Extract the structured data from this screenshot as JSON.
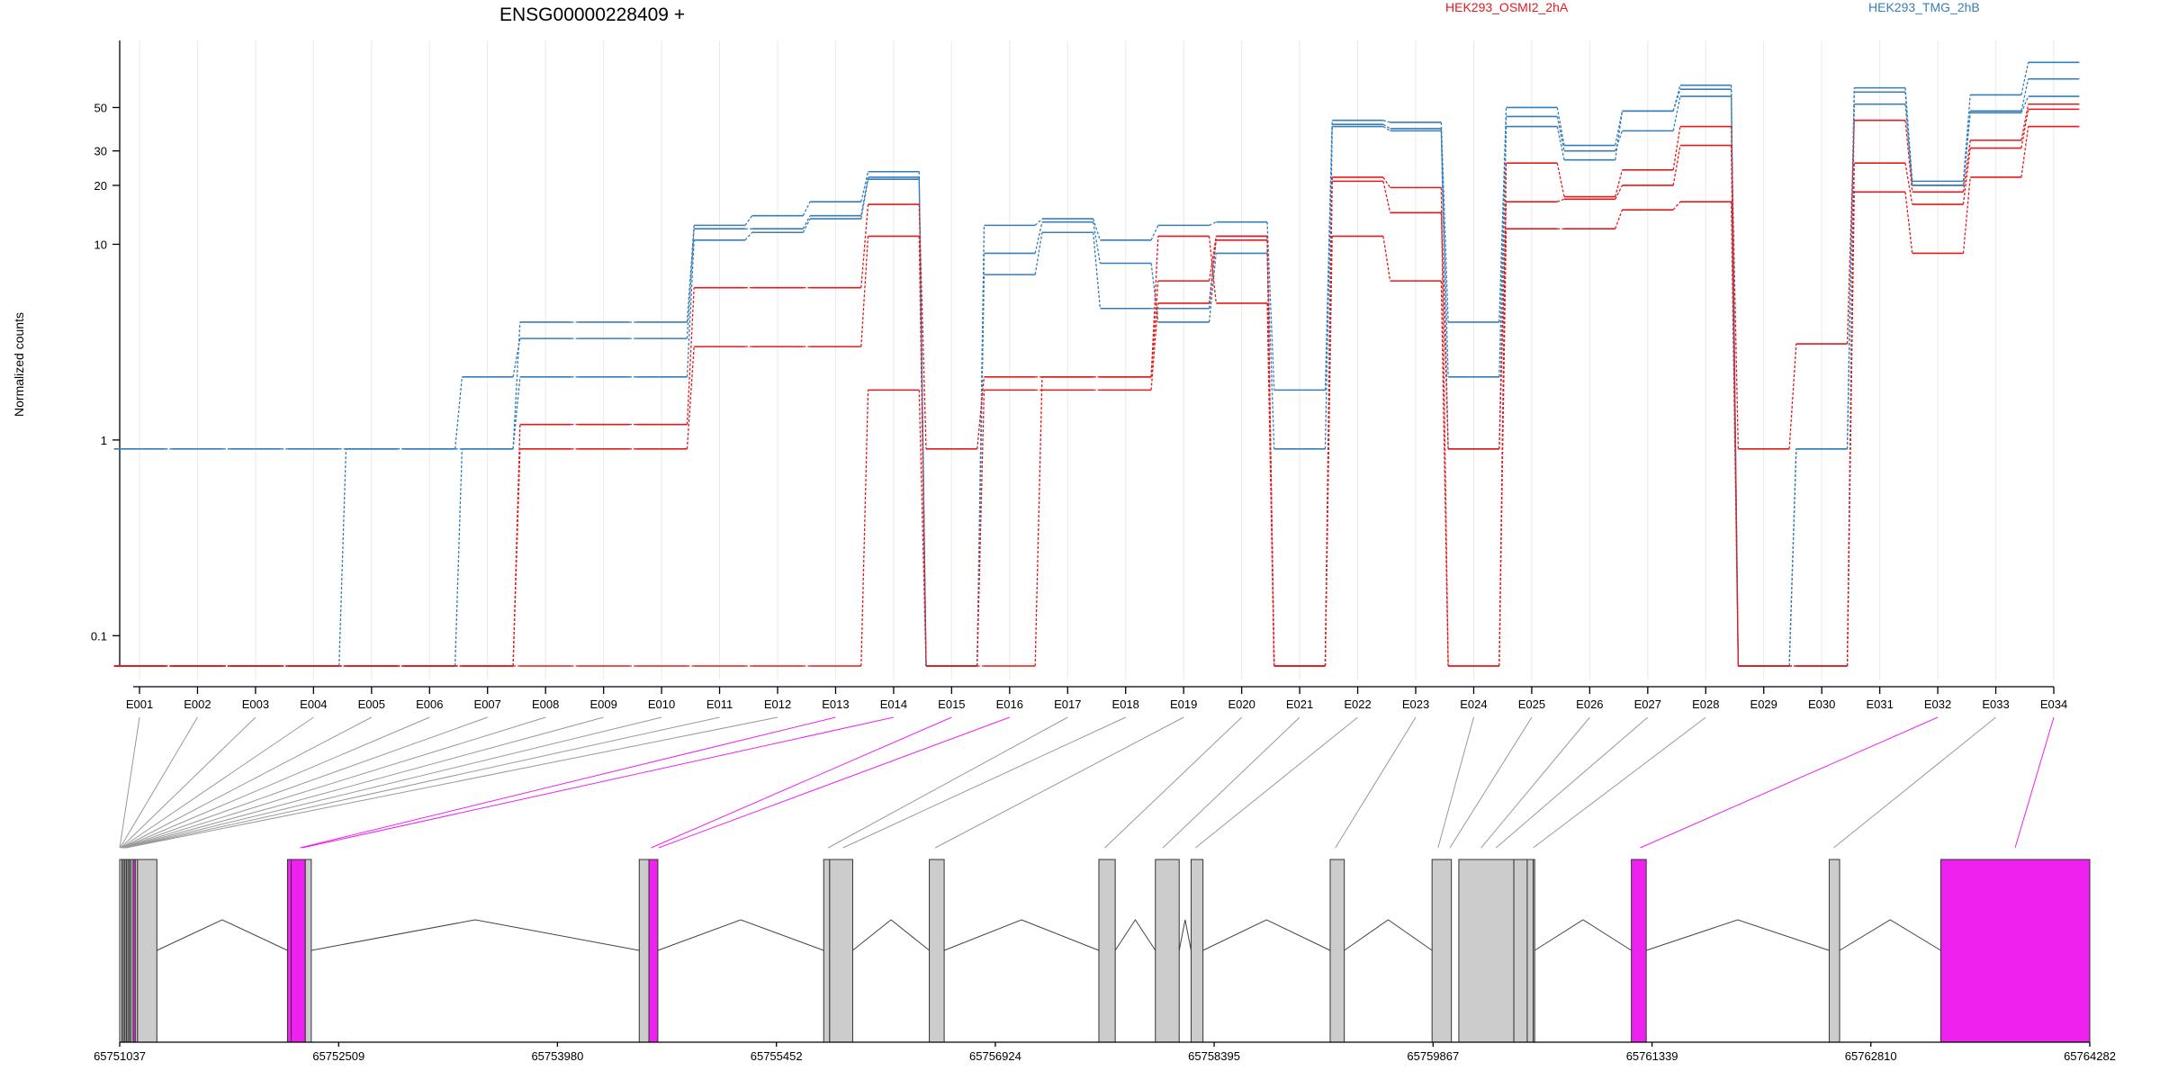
{
  "chart_data": {
    "type": "line",
    "title": "ENSG00000228409 +",
    "ylabel": "Normalized counts",
    "xlabel": "",
    "y_scale": "log",
    "ylim": [
      0.07,
      110
    ],
    "y_ticks": [
      {
        "value": 0.1,
        "label": "0.1"
      },
      {
        "value": 1,
        "label": "1"
      },
      {
        "value": 10,
        "label": "10"
      },
      {
        "value": 20,
        "label": "20"
      },
      {
        "value": 30,
        "label": "30"
      },
      {
        "value": 50,
        "label": "50"
      }
    ],
    "categories": [
      "E001",
      "E002",
      "E003",
      "E004",
      "E005",
      "E006",
      "E007",
      "E008",
      "E009",
      "E010",
      "E011",
      "E012",
      "E013",
      "E014",
      "E015",
      "E016",
      "E017",
      "E018",
      "E019",
      "E020",
      "E021",
      "E022",
      "E023",
      "E024",
      "E025",
      "E026",
      "E027",
      "E028",
      "E029",
      "E030",
      "E031",
      "E032",
      "E033",
      "E034"
    ],
    "legend": [
      {
        "label": "HEK293_OSMI2_2hA",
        "color": "#e41a1c"
      },
      {
        "label": "HEK293_TMG_2hB",
        "color": "#377eb8"
      }
    ],
    "legend_position": "top-right",
    "grid": "vertical",
    "series": [
      {
        "group": "HEK293_TMG_2hB",
        "color": "#377eb8",
        "values": [
          0.9,
          0.9,
          0.9,
          0.9,
          0.9,
          0.9,
          0.9,
          4,
          4,
          4,
          12.5,
          14,
          16.5,
          23.5,
          0.07,
          12.5,
          13.5,
          10.5,
          12.5,
          13,
          1.8,
          43,
          42,
          4,
          50,
          32,
          48,
          65,
          0.07,
          0.9,
          63,
          21,
          58,
          85
        ]
      },
      {
        "group": "HEK293_TMG_2hB",
        "color": "#377eb8",
        "values": [
          0.07,
          0.07,
          0.07,
          0.07,
          0.9,
          0.9,
          2.1,
          3.3,
          3.3,
          3.3,
          12,
          12,
          14,
          22,
          0.07,
          9,
          13,
          8,
          4,
          9,
          0.9,
          41,
          39,
          2.1,
          45,
          30,
          38,
          57,
          0.07,
          0.9,
          60,
          20,
          48,
          70
        ]
      },
      {
        "group": "HEK293_TMG_2hB",
        "color": "#377eb8",
        "values": [
          0.07,
          0.07,
          0.07,
          0.07,
          0.07,
          0.07,
          0.9,
          2.1,
          2.1,
          2.1,
          10.5,
          11.5,
          13.5,
          21.5,
          0.07,
          7,
          11.5,
          4.7,
          4.7,
          11,
          0.07,
          40,
          38,
          0.9,
          40,
          27,
          48,
          62,
          0.07,
          0.07,
          52,
          20,
          47,
          57
        ]
      },
      {
        "group": "HEK293_OSMI2_2hA",
        "color": "#e41a1c",
        "values": [
          0.07,
          0.07,
          0.07,
          0.07,
          0.07,
          0.07,
          0.07,
          1.2,
          1.2,
          1.2,
          6,
          6,
          6,
          16,
          0.9,
          2.1,
          2.1,
          2.1,
          6.5,
          11,
          0.07,
          22,
          19.5,
          0.07,
          26,
          17.5,
          24,
          40,
          0.9,
          3.1,
          43,
          18.5,
          34,
          52
        ]
      },
      {
        "group": "HEK293_OSMI2_2hA",
        "color": "#e41a1c",
        "values": [
          0.07,
          0.07,
          0.07,
          0.07,
          0.07,
          0.07,
          0.07,
          0.9,
          0.9,
          0.9,
          3,
          3,
          3,
          11,
          0.07,
          1.8,
          1.8,
          1.8,
          5,
          10.5,
          0.07,
          21,
          14.5,
          0.9,
          16.5,
          17,
          20,
          32,
          0.07,
          0.07,
          26,
          16,
          31,
          49
        ]
      },
      {
        "group": "HEK293_OSMI2_2hA",
        "color": "#e41a1c",
        "values": [
          0.07,
          0.07,
          0.07,
          0.07,
          0.07,
          0.07,
          0.07,
          0.07,
          0.07,
          0.07,
          0.07,
          0.07,
          0.07,
          1.8,
          0.07,
          0.07,
          2.1,
          2.1,
          11,
          5,
          0.07,
          11,
          6.5,
          0.07,
          12,
          12,
          15,
          16.5,
          0.07,
          0.07,
          18.5,
          9,
          22,
          40
        ]
      }
    ],
    "gene_model": {
      "coordinate_range": [
        65751037,
        65764282
      ],
      "coordinate_ticks": [
        "65751037",
        "65752509",
        "65753980",
        "65755452",
        "65756924",
        "65758395",
        "65759867",
        "65761339",
        "65762810",
        "65764282"
      ],
      "exon_fill_color": "#cccccc",
      "highlight_color": "#ee22ee",
      "exons": [
        {
          "bin": "E001",
          "start": 65751037,
          "end": 65751052,
          "highlight": false
        },
        {
          "bin": "E002",
          "start": 65751052,
          "end": 65751062,
          "highlight": false
        },
        {
          "bin": "E003",
          "start": 65751062,
          "end": 65751072,
          "highlight": false
        },
        {
          "bin": "E004",
          "start": 65751072,
          "end": 65751082,
          "highlight": false
        },
        {
          "bin": "E005",
          "start": 65751082,
          "end": 65751092,
          "highlight": false
        },
        {
          "bin": "E006",
          "start": 65751092,
          "end": 65751102,
          "highlight": false
        },
        {
          "bin": "E007",
          "start": 65751102,
          "end": 65751112,
          "highlight": false
        },
        {
          "bin": "E008",
          "start": 65751112,
          "end": 65751127,
          "highlight": false
        },
        {
          "bin": "E009",
          "start": 65751127,
          "end": 65751142,
          "highlight": true
        },
        {
          "bin": "E010",
          "start": 65751142,
          "end": 65751157,
          "highlight": false
        },
        {
          "bin": "E011",
          "start": 65751157,
          "end": 65751287,
          "highlight": false
        },
        {
          "bin": "E012",
          "start": 65752165,
          "end": 65752190,
          "highlight": true
        },
        {
          "bin": "E013",
          "start": 65752190,
          "end": 65752285,
          "highlight": true
        },
        {
          "bin": "E014",
          "start": 65752285,
          "end": 65752325,
          "highlight": false
        },
        {
          "bin": "E015",
          "start": 65754530,
          "end": 65754595,
          "highlight": false
        },
        {
          "bin": "E016",
          "start": 65754595,
          "end": 65754655,
          "highlight": true
        },
        {
          "bin": "E017",
          "start": 65755770,
          "end": 65755810,
          "highlight": false
        },
        {
          "bin": "E018",
          "start": 65755810,
          "end": 65755965,
          "highlight": false
        },
        {
          "bin": "E019",
          "start": 65756480,
          "end": 65756580,
          "highlight": false
        },
        {
          "bin": "E020",
          "start": 65757620,
          "end": 65757730,
          "highlight": false
        },
        {
          "bin": "E021",
          "start": 65758000,
          "end": 65758160,
          "highlight": false
        },
        {
          "bin": "E022",
          "start": 65758240,
          "end": 65758320,
          "highlight": false
        },
        {
          "bin": "E023",
          "start": 65759175,
          "end": 65759270,
          "highlight": false
        },
        {
          "bin": "E024",
          "start": 65759860,
          "end": 65759990,
          "highlight": false
        },
        {
          "bin": "E025",
          "start": 65760040,
          "end": 65760410,
          "highlight": false
        },
        {
          "bin": "E026",
          "start": 65760410,
          "end": 65760500,
          "highlight": false
        },
        {
          "bin": "E027",
          "start": 65760500,
          "end": 65760540,
          "highlight": false
        },
        {
          "bin": "E028",
          "start": 65760540,
          "end": 65760550,
          "highlight": false
        },
        {
          "bin": "E029",
          "start": 65761200,
          "end": 65761300,
          "highlight": true
        },
        {
          "bin": "E030",
          "start": 65762530,
          "end": 65762600,
          "highlight": false
        },
        {
          "bin": "E031",
          "start": 65763280,
          "end": 65764282,
          "highlight": true
        }
      ],
      "bin_links": [
        {
          "bin": "E001",
          "coord": 65751037,
          "highlight": false
        },
        {
          "bin": "E002",
          "coord": 65751040,
          "highlight": false
        },
        {
          "bin": "E003",
          "coord": 65751044,
          "highlight": false
        },
        {
          "bin": "E004",
          "coord": 65751048,
          "highlight": false
        },
        {
          "bin": "E005",
          "coord": 65751052,
          "highlight": false
        },
        {
          "bin": "E006",
          "coord": 65751056,
          "highlight": false
        },
        {
          "bin": "E007",
          "coord": 65751060,
          "highlight": false
        },
        {
          "bin": "E008",
          "coord": 65751064,
          "highlight": false
        },
        {
          "bin": "E009",
          "coord": 65751068,
          "highlight": false
        },
        {
          "bin": "E010",
          "coord": 65751072,
          "highlight": false
        },
        {
          "bin": "E011",
          "coord": 65751076,
          "highlight": false
        },
        {
          "bin": "E012",
          "coord": 65751080,
          "highlight": false
        },
        {
          "bin": "E013",
          "coord": 65752250,
          "highlight": true
        },
        {
          "bin": "E014",
          "coord": 65752265,
          "highlight": true
        },
        {
          "bin": "E015",
          "coord": 65754610,
          "highlight": true
        },
        {
          "bin": "E016",
          "coord": 65754660,
          "highlight": true
        },
        {
          "bin": "E017",
          "coord": 65755800,
          "highlight": false
        },
        {
          "bin": "E018",
          "coord": 65755900,
          "highlight": false
        },
        {
          "bin": "E019",
          "coord": 65756520,
          "highlight": false
        },
        {
          "bin": "E020",
          "coord": 65757660,
          "highlight": false
        },
        {
          "bin": "E021",
          "coord": 65758050,
          "highlight": false
        },
        {
          "bin": "E022",
          "coord": 65758270,
          "highlight": false
        },
        {
          "bin": "E023",
          "coord": 65759210,
          "highlight": false
        },
        {
          "bin": "E024",
          "coord": 65759900,
          "highlight": false
        },
        {
          "bin": "E025",
          "coord": 65759980,
          "highlight": false
        },
        {
          "bin": "E026",
          "coord": 65760190,
          "highlight": false
        },
        {
          "bin": "E027",
          "coord": 65760290,
          "highlight": false
        },
        {
          "bin": "E028",
          "coord": 65760540,
          "highlight": false
        },
        {
          "bin": "E032",
          "coord": 65761260,
          "highlight": true
        },
        {
          "bin": "E033",
          "coord": 65762560,
          "highlight": false
        },
        {
          "bin": "E034",
          "coord": 65763780,
          "highlight": true
        }
      ],
      "introns": [
        [
          65751287,
          65752165
        ],
        [
          65752325,
          65754530
        ],
        [
          65754655,
          65755770
        ],
        [
          65755965,
          65756480
        ],
        [
          65756580,
          65757620
        ],
        [
          65757730,
          65758000
        ],
        [
          65758160,
          65758240
        ],
        [
          65758320,
          65759175
        ],
        [
          65759270,
          65759860
        ],
        [
          65760550,
          65761200
        ],
        [
          65761300,
          65762530
        ],
        [
          65762600,
          65763280
        ]
      ]
    }
  }
}
